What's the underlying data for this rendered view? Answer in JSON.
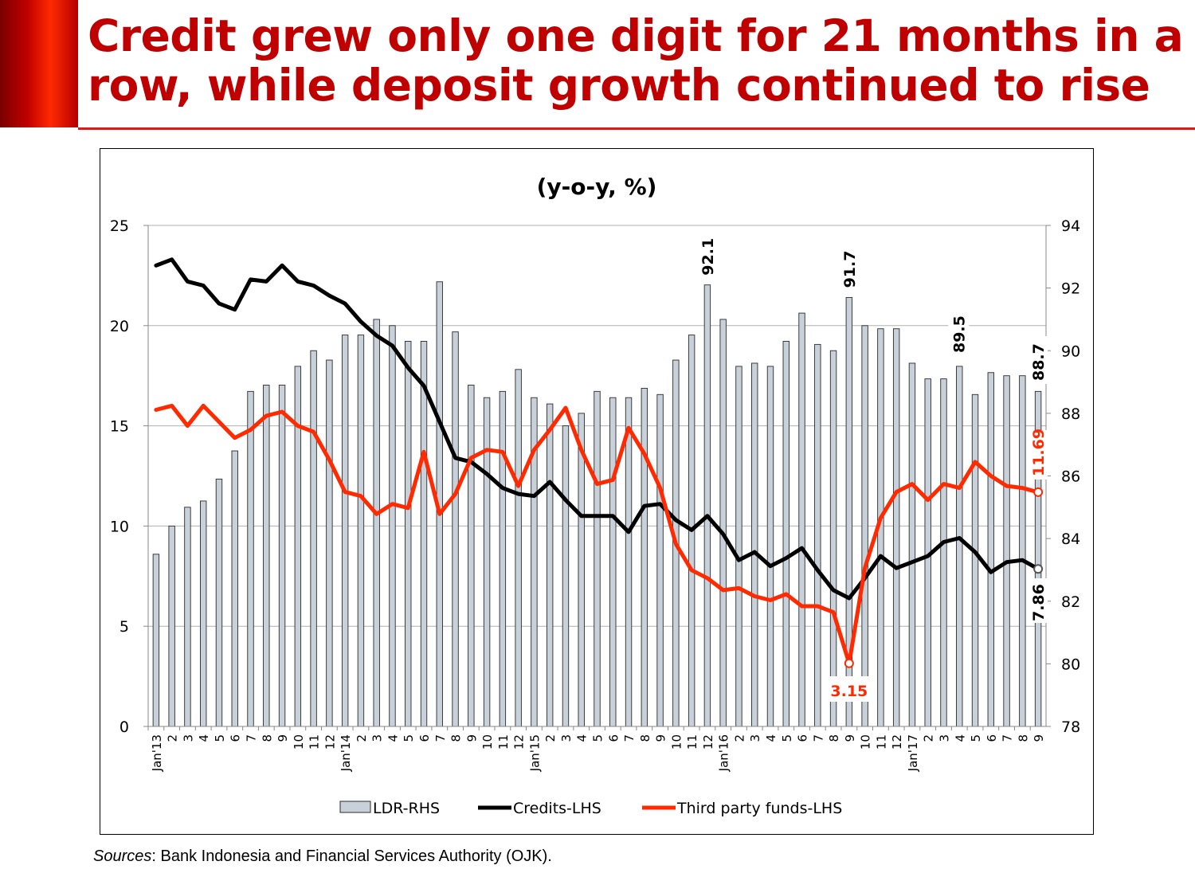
{
  "page": {
    "title": "Credit grew only one digit for 21 months in a row, while deposit growth continued to rise",
    "sources_label": "Sources",
    "sources_text": ": Bank Indonesia and Financial Services Authority (OJK).",
    "accent_color": "#c00000"
  },
  "chart_data": {
    "type": "bar",
    "title": "(y-o-y, %)",
    "categories": [
      "Jan'13",
      "2",
      "3",
      "4",
      "5",
      "6",
      "7",
      "8",
      "9",
      "10",
      "11",
      "12",
      "Jan'14",
      "2",
      "3",
      "4",
      "5",
      "6",
      "7",
      "8",
      "9",
      "10",
      "11",
      "12",
      "Jan'15",
      "2",
      "3",
      "4",
      "5",
      "6",
      "7",
      "8",
      "9",
      "10",
      "11",
      "12",
      "Jan'16",
      "2",
      "3",
      "4",
      "5",
      "6",
      "7",
      "8",
      "9",
      "10",
      "11",
      "12",
      "Jan'17",
      "2",
      "3",
      "4",
      "5",
      "6",
      "7",
      "8",
      "9"
    ],
    "y_left": {
      "min": 0,
      "max": 25,
      "ticks": [
        "0",
        "5",
        "10",
        "15",
        "20",
        "25"
      ]
    },
    "y_right": {
      "min": 78,
      "max": 94,
      "ticks": [
        "78",
        "80",
        "82",
        "84",
        "86",
        "88",
        "90",
        "92",
        "94"
      ]
    },
    "series": [
      {
        "name": "LDR-RHS",
        "type": "bar",
        "axis": "right",
        "color": "#c8d0d9",
        "values": [
          83.5,
          84.4,
          85.0,
          85.2,
          85.9,
          86.8,
          88.7,
          88.9,
          88.9,
          89.5,
          90.0,
          89.7,
          90.5,
          90.5,
          91.0,
          90.8,
          90.3,
          90.3,
          92.2,
          90.6,
          88.9,
          88.5,
          88.7,
          89.4,
          88.5,
          88.3,
          87.6,
          88.0,
          88.7,
          88.5,
          88.5,
          88.8,
          88.6,
          89.7,
          90.5,
          92.1,
          91.0,
          89.5,
          89.6,
          89.5,
          90.3,
          91.2,
          90.2,
          90.0,
          91.7,
          90.8,
          90.7,
          90.7,
          89.6,
          89.1,
          89.1,
          89.5,
          88.6,
          89.3,
          89.2,
          89.2,
          88.7
        ]
      },
      {
        "name": "Credits-LHS",
        "type": "line",
        "axis": "left",
        "color": "#000000",
        "values": [
          23.0,
          23.3,
          22.2,
          22.0,
          21.1,
          20.8,
          22.3,
          22.2,
          23.0,
          22.2,
          22.0,
          21.5,
          21.1,
          20.2,
          19.5,
          19.0,
          17.9,
          17.0,
          15.2,
          13.4,
          13.2,
          12.6,
          11.9,
          11.6,
          11.5,
          12.2,
          11.3,
          10.5,
          10.5,
          10.5,
          9.7,
          11.0,
          11.1,
          10.3,
          9.8,
          10.5,
          9.6,
          8.3,
          8.7,
          8.0,
          8.4,
          8.9,
          7.8,
          6.8,
          6.4,
          7.4,
          8.5,
          7.9,
          8.2,
          8.5,
          9.2,
          9.4,
          8.7,
          7.7,
          8.2,
          8.3,
          7.86
        ]
      },
      {
        "name": "Third party funds-LHS",
        "type": "line",
        "axis": "left",
        "color": "#ff2a00",
        "values": [
          15.8,
          16.0,
          15.0,
          16.0,
          15.2,
          14.4,
          14.8,
          15.5,
          15.7,
          15.0,
          14.7,
          13.3,
          11.7,
          11.5,
          10.6,
          11.1,
          10.9,
          13.7,
          10.6,
          11.6,
          13.4,
          13.8,
          13.7,
          12.0,
          13.8,
          14.8,
          15.9,
          13.8,
          12.1,
          12.3,
          14.9,
          13.6,
          11.9,
          9.1,
          7.8,
          7.4,
          6.8,
          6.9,
          6.5,
          6.3,
          6.6,
          6.0,
          6.0,
          5.7,
          3.15,
          7.9,
          10.4,
          11.7,
          12.1,
          11.3,
          12.1,
          11.9,
          13.2,
          12.5,
          12.0,
          11.9,
          11.69
        ]
      }
    ],
    "annotations": [
      {
        "text": "92.1",
        "series": "LDR-RHS",
        "index": 35
      },
      {
        "text": "91.7",
        "series": "LDR-RHS",
        "index": 44
      },
      {
        "text": "89.5",
        "series": "LDR-RHS",
        "index": 51
      },
      {
        "text": "88.7",
        "series": "LDR-RHS",
        "index": 56
      },
      {
        "text": "11.69",
        "series": "Third party funds-LHS",
        "index": 56
      },
      {
        "text": "7.86",
        "series": "Credits-LHS",
        "index": 56
      },
      {
        "text": "3.15",
        "series": "Third party funds-LHS",
        "index": 44
      }
    ],
    "grid": "horizontal",
    "legend_placement": "bottom"
  }
}
